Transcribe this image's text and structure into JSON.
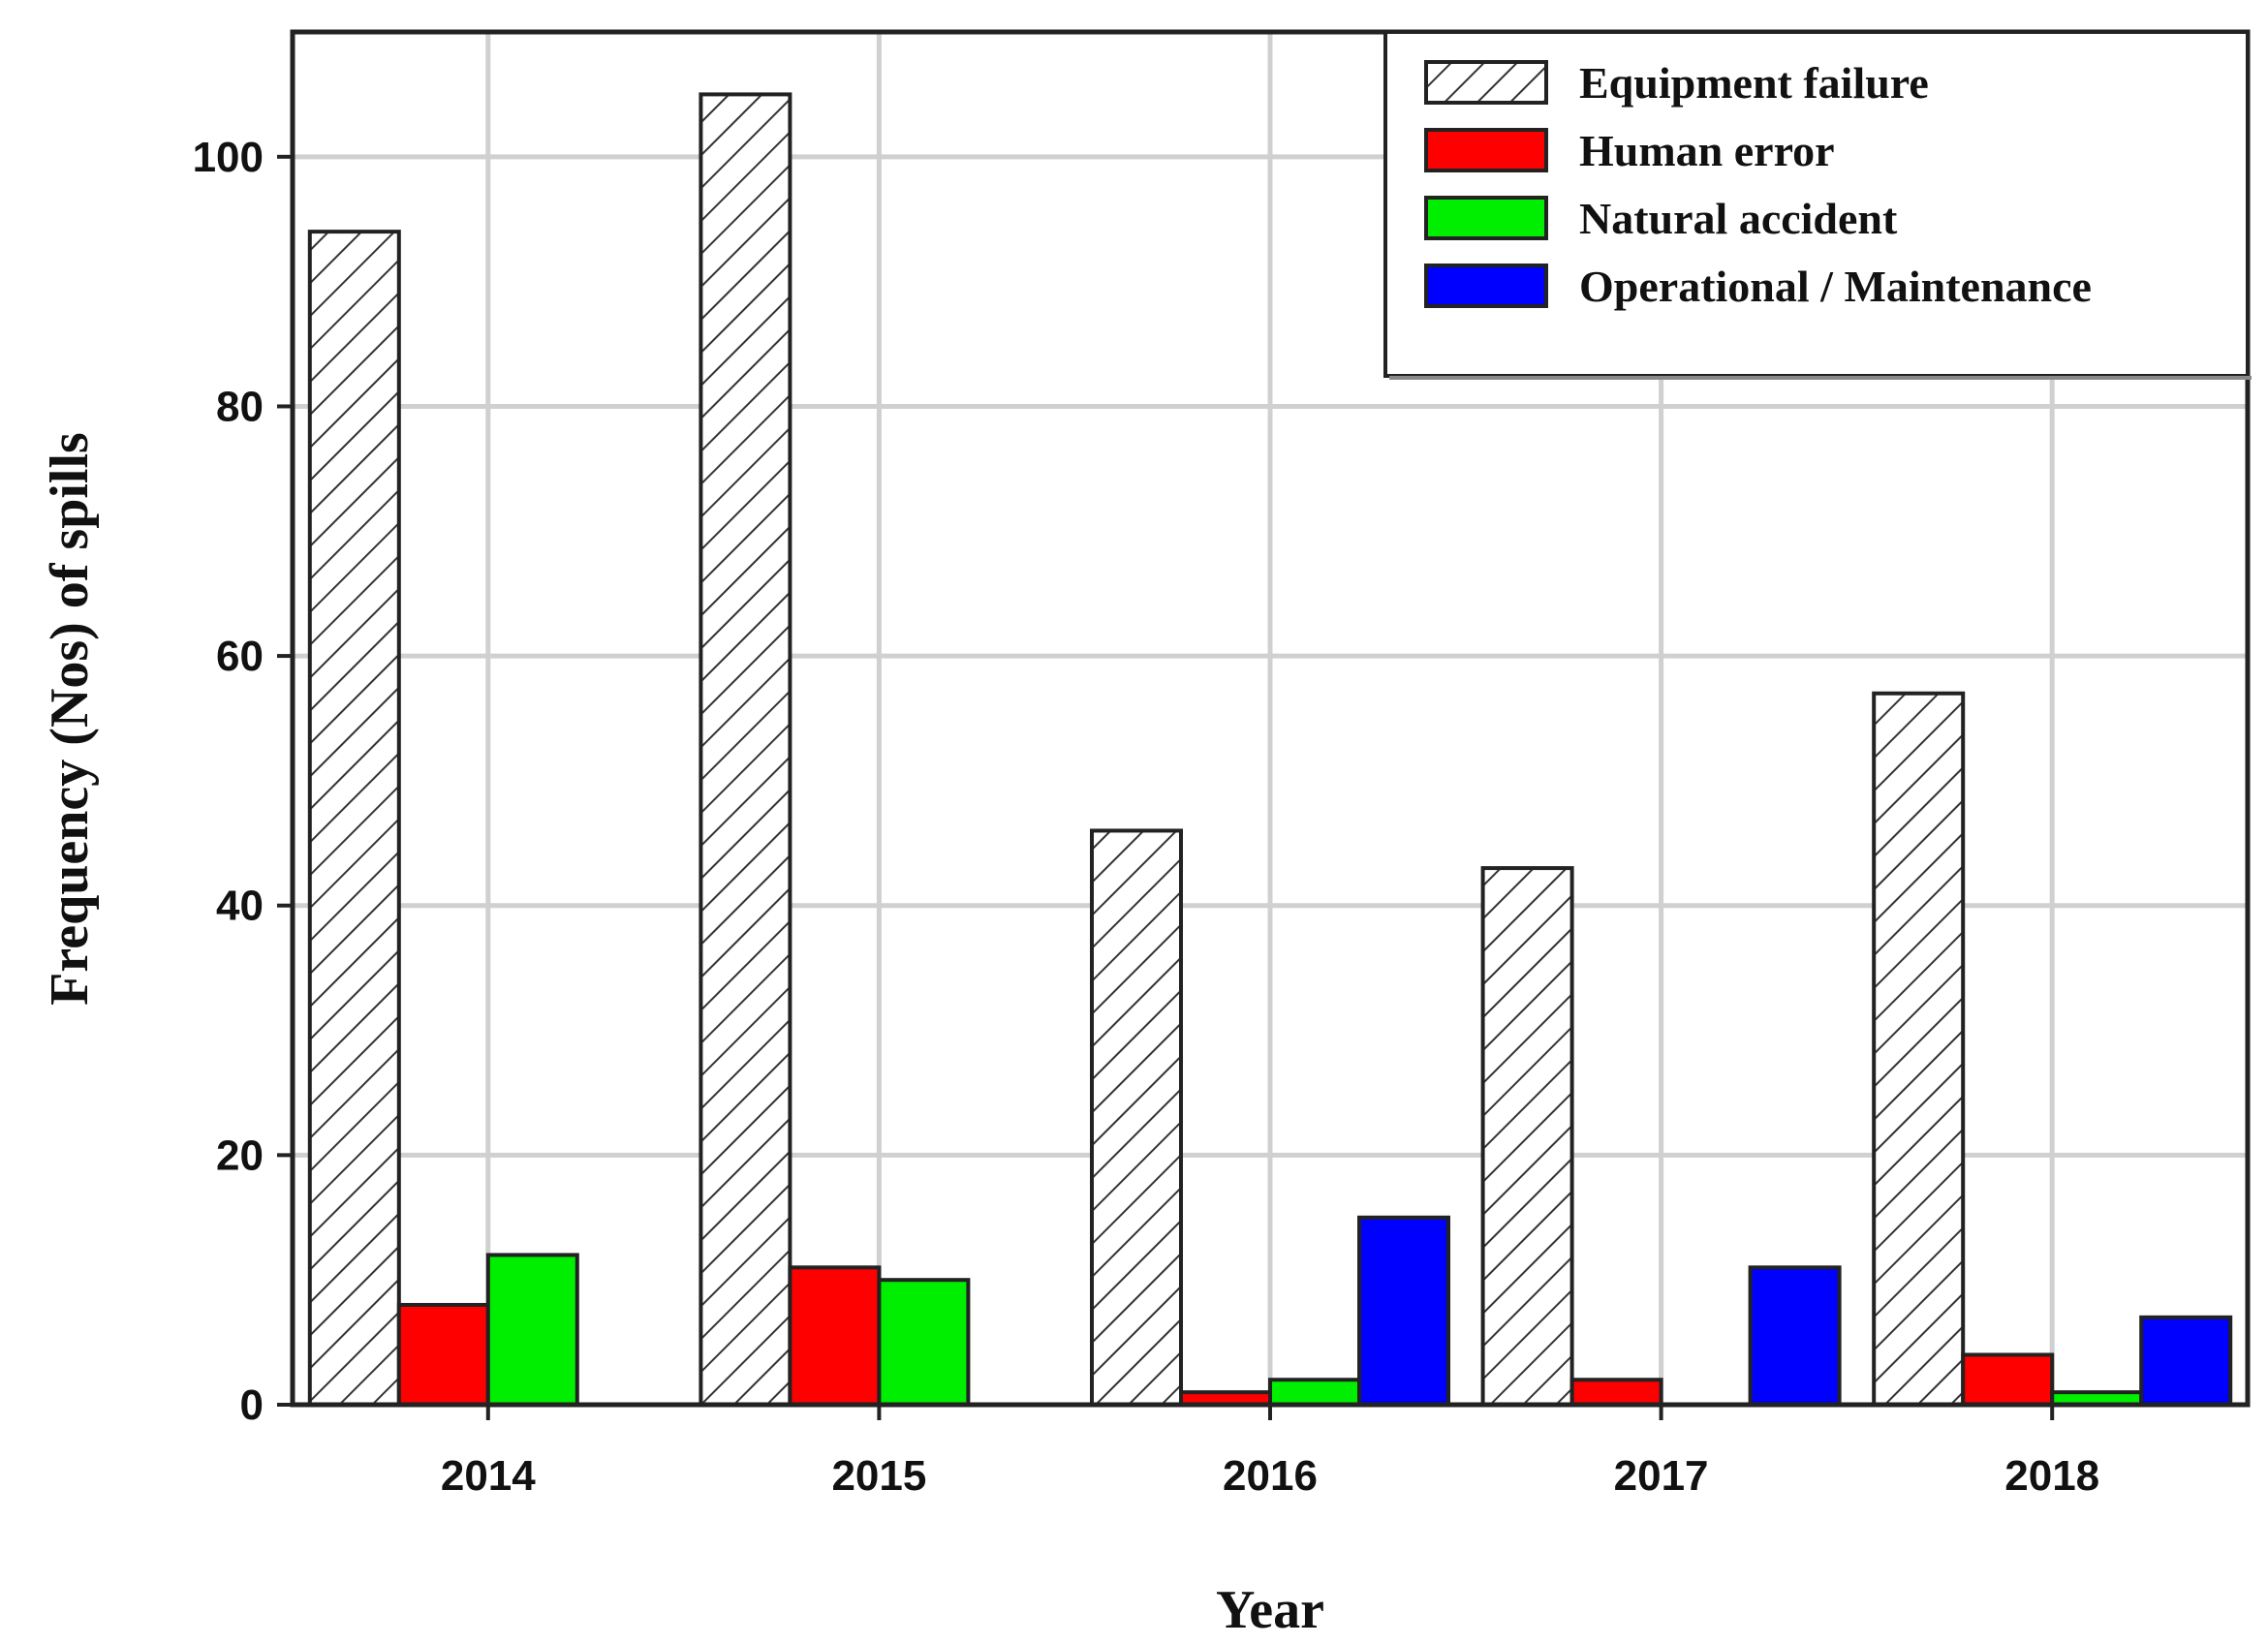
{
  "chart_data": {
    "type": "bar",
    "title": "",
    "xlabel": "Year",
    "ylabel": "Frequency (Nos) of spills",
    "categories": [
      "2014",
      "2015",
      "2016",
      "2017",
      "2018"
    ],
    "series": [
      {
        "name": "Equipment failure",
        "values": [
          94,
          105,
          46,
          43,
          57
        ],
        "color": "#ffffff",
        "pattern": "diagonal-hatch"
      },
      {
        "name": "Human error",
        "values": [
          8,
          11,
          1,
          2,
          4
        ],
        "color": "#ff0000"
      },
      {
        "name": "Natural accident",
        "values": [
          12,
          10,
          2,
          0,
          1
        ],
        "color": "#00ee00"
      },
      {
        "name": "Operational / Maintenance",
        "values": [
          0,
          0,
          15,
          11,
          7
        ],
        "color": "#0000ff"
      }
    ],
    "ylim": [
      0,
      110
    ],
    "yticks": [
      0,
      20,
      40,
      60,
      80,
      100
    ],
    "grid": true,
    "legend": "top-right"
  }
}
